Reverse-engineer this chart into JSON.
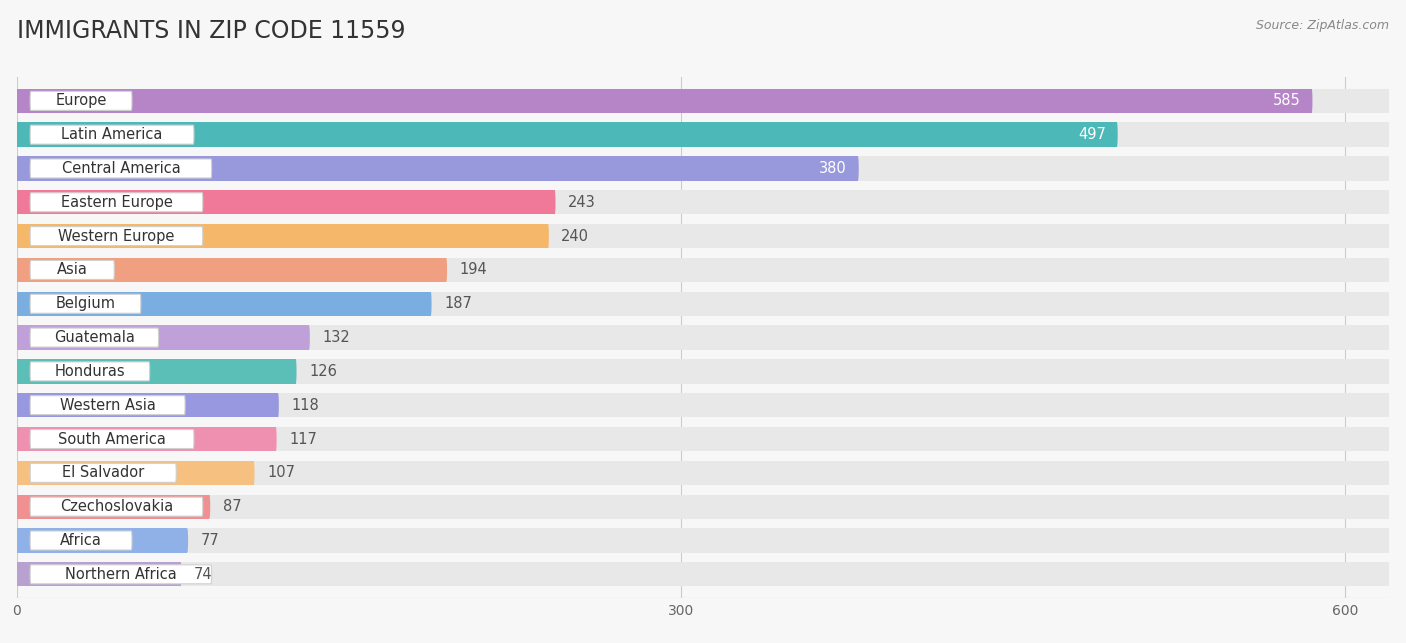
{
  "title": "IMMIGRANTS IN ZIP CODE 11559",
  "source": "Source: ZipAtlas.com",
  "categories": [
    "Europe",
    "Latin America",
    "Central America",
    "Eastern Europe",
    "Western Europe",
    "Asia",
    "Belgium",
    "Guatemala",
    "Honduras",
    "Western Asia",
    "South America",
    "El Salvador",
    "Czechoslovakia",
    "Africa",
    "Northern Africa"
  ],
  "values": [
    585,
    497,
    380,
    243,
    240,
    194,
    187,
    132,
    126,
    118,
    117,
    107,
    87,
    77,
    74
  ],
  "colors": [
    "#b585c8",
    "#4db8b8",
    "#9898dc",
    "#f07898",
    "#f5b86a",
    "#f0a080",
    "#7aaee0",
    "#c0a0d8",
    "#5bbfb8",
    "#9898e0",
    "#f090b0",
    "#f5c080",
    "#f09090",
    "#90b0e8",
    "#b8a0d0"
  ],
  "background_color": "#f7f7f7",
  "bar_bg_color": "#e8e8e8",
  "xlim": [
    0,
    620
  ],
  "xticks": [
    0,
    300,
    600
  ],
  "title_fontsize": 17,
  "label_fontsize": 10.5,
  "value_fontsize": 10.5
}
